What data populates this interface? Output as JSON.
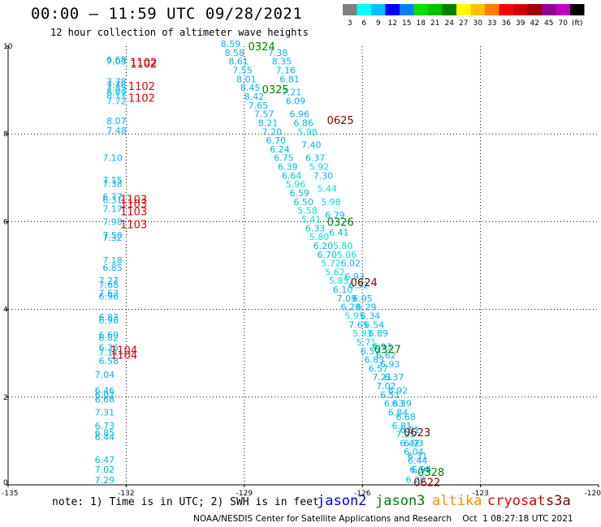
{
  "header": {
    "title": "00:00 – 11:59 UTC 09/28/2021",
    "subtitle": "12 hour collection of altimeter wave heights"
  },
  "legend": {
    "colors": [
      "#808080",
      "#00ffff",
      "#00c0ff",
      "#0000ff",
      "#0080ff",
      "#00e000",
      "#00c000",
      "#008000",
      "#ffff00",
      "#ffc000",
      "#ff8000",
      "#ff0000",
      "#d00000",
      "#a00000",
      "#900090",
      "#c000c0",
      "#000000"
    ],
    "labels": [
      "3",
      "6",
      "9",
      "12",
      "15",
      "18",
      "21",
      "24",
      "27",
      "30",
      "33",
      "36",
      "39",
      "42",
      "45",
      "70",
      "(ft)"
    ]
  },
  "chart_data": {
    "type": "scatter",
    "xlim": [
      -135,
      -120
    ],
    "ylim": [
      0,
      10
    ],
    "xticks": [
      "-135",
      "-132",
      "-129",
      "-126",
      "-123",
      "-120"
    ],
    "yticks": [
      "0",
      "2",
      "4",
      "6",
      "8",
      "10"
    ],
    "grid": true,
    "track_west": [
      {
        "x": -132.5,
        "y": 9.62,
        "label": "6.68"
      },
      {
        "x": -132.5,
        "y": 9.58,
        "label": "7.03"
      },
      {
        "x": -132.5,
        "y": 9.12,
        "label": "7.78"
      },
      {
        "x": -132.5,
        "y": 9.05,
        "label": "7.78"
      },
      {
        "x": -132.5,
        "y": 8.98,
        "label": "7.85"
      },
      {
        "x": -132.5,
        "y": 8.88,
        "label": "8.09"
      },
      {
        "x": -132.5,
        "y": 8.81,
        "label": "8.11"
      },
      {
        "x": -132.5,
        "y": 8.68,
        "label": "7.72"
      },
      {
        "x": -132.5,
        "y": 8.23,
        "label": "8.07"
      },
      {
        "x": -132.5,
        "y": 8.0,
        "label": "7.48"
      },
      {
        "x": -132.6,
        "y": 7.38,
        "label": "7.10"
      },
      {
        "x": -132.6,
        "y": 6.88,
        "label": "7.15"
      },
      {
        "x": -132.6,
        "y": 6.79,
        "label": "7.38"
      },
      {
        "x": -132.6,
        "y": 6.5,
        "label": "6.77"
      },
      {
        "x": -132.6,
        "y": 6.42,
        "label": "6.31"
      },
      {
        "x": -132.6,
        "y": 6.22,
        "label": "7.17"
      },
      {
        "x": -132.6,
        "y": 5.92,
        "label": "7.98"
      },
      {
        "x": -132.6,
        "y": 5.62,
        "label": "7.50"
      },
      {
        "x": -132.6,
        "y": 5.56,
        "label": "7.32"
      },
      {
        "x": -132.6,
        "y": 5.05,
        "label": "7.18"
      },
      {
        "x": -132.6,
        "y": 4.88,
        "label": "6.85"
      },
      {
        "x": -132.7,
        "y": 4.58,
        "label": "7.27"
      },
      {
        "x": -132.7,
        "y": 4.49,
        "label": "7.68"
      },
      {
        "x": -132.7,
        "y": 4.3,
        "label": "7.63"
      },
      {
        "x": -132.7,
        "y": 4.22,
        "label": "6.96"
      },
      {
        "x": -132.7,
        "y": 3.75,
        "label": "6.83"
      },
      {
        "x": -132.7,
        "y": 3.68,
        "label": "6.98"
      },
      {
        "x": -132.7,
        "y": 3.35,
        "label": "6.60"
      },
      {
        "x": -132.7,
        "y": 3.28,
        "label": "6.82"
      },
      {
        "x": -132.7,
        "y": 3.06,
        "label": "6.36"
      },
      {
        "x": -132.7,
        "y": 2.95,
        "label": "7.11"
      },
      {
        "x": -132.7,
        "y": 2.75,
        "label": "6.58"
      },
      {
        "x": -132.8,
        "y": 2.44,
        "label": "7.04"
      },
      {
        "x": -132.8,
        "y": 2.08,
        "label": "6.46"
      },
      {
        "x": -132.8,
        "y": 1.98,
        "label": "6.07"
      },
      {
        "x": -132.8,
        "y": 1.88,
        "label": "6.68"
      },
      {
        "x": -132.8,
        "y": 1.58,
        "label": "7.31"
      },
      {
        "x": -132.8,
        "y": 1.28,
        "label": "6.73"
      },
      {
        "x": -132.8,
        "y": 1.12,
        "label": "6.85"
      },
      {
        "x": -132.8,
        "y": 1.02,
        "label": "6.44"
      },
      {
        "x": -132.8,
        "y": 0.5,
        "label": "6.47"
      },
      {
        "x": -132.8,
        "y": 0.28,
        "label": "7.02"
      },
      {
        "x": -132.8,
        "y": 0.04,
        "label": "7.29"
      }
    ],
    "track_east": [
      {
        "x": -129.6,
        "y": 9.98,
        "label": "8.59"
      },
      {
        "x": -129.5,
        "y": 9.78,
        "label": "8.58"
      },
      {
        "x": -129.4,
        "y": 9.58,
        "label": "8.61"
      },
      {
        "x": -129.3,
        "y": 9.38,
        "label": "7.55"
      },
      {
        "x": -129.2,
        "y": 9.18,
        "label": "8.01"
      },
      {
        "x": -129.1,
        "y": 8.98,
        "label": "8.45"
      },
      {
        "x": -129.0,
        "y": 8.78,
        "label": "8.42"
      },
      {
        "x": -128.9,
        "y": 8.58,
        "label": "7.65"
      },
      {
        "x": -128.75,
        "y": 8.38,
        "label": "7.57"
      },
      {
        "x": -128.65,
        "y": 8.18,
        "label": "8.21"
      },
      {
        "x": -128.55,
        "y": 7.98,
        "label": "7.20"
      },
      {
        "x": -128.45,
        "y": 7.78,
        "label": "6.70"
      },
      {
        "x": -128.35,
        "y": 7.58,
        "label": "6.24"
      },
      {
        "x": -128.25,
        "y": 7.38,
        "label": "6.75"
      },
      {
        "x": -128.15,
        "y": 7.18,
        "label": "6.39"
      },
      {
        "x": -128.05,
        "y": 6.98,
        "label": "6.64"
      },
      {
        "x": -127.95,
        "y": 6.78,
        "label": "5.96"
      },
      {
        "x": -127.85,
        "y": 6.58,
        "label": "6.59"
      },
      {
        "x": -127.75,
        "y": 6.38,
        "label": "6.50"
      },
      {
        "x": -127.65,
        "y": 6.18,
        "label": "5.58"
      },
      {
        "x": -127.55,
        "y": 5.98,
        "label": "5.41"
      },
      {
        "x": -127.45,
        "y": 5.78,
        "label": "6.33"
      },
      {
        "x": -127.35,
        "y": 5.58,
        "label": "5.80"
      },
      {
        "x": -127.25,
        "y": 5.38,
        "label": "6.20"
      },
      {
        "x": -127.15,
        "y": 5.18,
        "label": "6.70"
      },
      {
        "x": -127.05,
        "y": 4.98,
        "label": "5.72"
      },
      {
        "x": -126.95,
        "y": 4.78,
        "label": "5.62"
      },
      {
        "x": -126.85,
        "y": 4.58,
        "label": "5.85"
      },
      {
        "x": -126.75,
        "y": 4.38,
        "label": "6.10"
      },
      {
        "x": -126.65,
        "y": 4.18,
        "label": "7.09"
      },
      {
        "x": -126.55,
        "y": 3.98,
        "label": "6.28"
      },
      {
        "x": -126.45,
        "y": 3.78,
        "label": "5.95"
      },
      {
        "x": -126.35,
        "y": 3.58,
        "label": "7.65"
      },
      {
        "x": -126.25,
        "y": 3.38,
        "label": "5.93"
      },
      {
        "x": -126.15,
        "y": 3.18,
        "label": "5.71"
      },
      {
        "x": -126.05,
        "y": 2.98,
        "label": "6.57"
      },
      {
        "x": -125.95,
        "y": 2.78,
        "label": "6.83"
      },
      {
        "x": -125.85,
        "y": 2.58,
        "label": "6.57"
      },
      {
        "x": -125.75,
        "y": 2.38,
        "label": "7.21"
      },
      {
        "x": -125.65,
        "y": 2.18,
        "label": "7.02"
      },
      {
        "x": -125.55,
        "y": 1.98,
        "label": "6.51"
      },
      {
        "x": -125.45,
        "y": 1.78,
        "label": "6.83"
      },
      {
        "x": -125.35,
        "y": 1.58,
        "label": "6.84"
      },
      {
        "x": -125.25,
        "y": 1.28,
        "label": "6.81"
      },
      {
        "x": -125.15,
        "y": 1.08,
        "label": "7.25"
      },
      {
        "x": -125.05,
        "y": 0.88,
        "label": "6.42"
      },
      {
        "x": -124.95,
        "y": 0.68,
        "label": "6.04"
      },
      {
        "x": -124.85,
        "y": 0.48,
        "label": "6.44"
      },
      {
        "x": -124.8,
        "y": 0.28,
        "label": "6.14"
      },
      {
        "x": -124.9,
        "y": 0.05,
        "label": "6.26"
      },
      {
        "x": -128.4,
        "y": 9.78,
        "label": "7.38"
      },
      {
        "x": -128.3,
        "y": 9.58,
        "label": "8.35"
      },
      {
        "x": -128.2,
        "y": 9.38,
        "label": "7.16"
      },
      {
        "x": -128.1,
        "y": 9.18,
        "label": "6.81"
      },
      {
        "x": -128.05,
        "y": 8.88,
        "label": "7.21"
      },
      {
        "x": -127.95,
        "y": 8.68,
        "label": "6.09"
      },
      {
        "x": -127.85,
        "y": 8.38,
        "label": "6.96"
      },
      {
        "x": -127.75,
        "y": 8.18,
        "label": "6.86"
      },
      {
        "x": -127.65,
        "y": 7.98,
        "label": "5.98"
      },
      {
        "x": -127.55,
        "y": 7.68,
        "label": "7.40"
      },
      {
        "x": -127.45,
        "y": 7.38,
        "label": "6.37"
      },
      {
        "x": -127.35,
        "y": 7.18,
        "label": "5.92"
      },
      {
        "x": -127.25,
        "y": 6.98,
        "label": "7.30"
      },
      {
        "x": -127.15,
        "y": 6.68,
        "label": "5.44"
      },
      {
        "x": -127.05,
        "y": 6.38,
        "label": "5.98"
      },
      {
        "x": -126.95,
        "y": 6.08,
        "label": "6.79"
      },
      {
        "x": -126.85,
        "y": 5.68,
        "label": "6.41"
      },
      {
        "x": -126.75,
        "y": 5.38,
        "label": "5.80"
      },
      {
        "x": -126.65,
        "y": 5.18,
        "label": "5.06"
      },
      {
        "x": -126.55,
        "y": 4.98,
        "label": "6.02"
      },
      {
        "x": -126.45,
        "y": 4.68,
        "label": "6.93"
      },
      {
        "x": -126.35,
        "y": 4.48,
        "label": "6.32"
      },
      {
        "x": -126.25,
        "y": 4.18,
        "label": "6.95"
      },
      {
        "x": -126.15,
        "y": 3.98,
        "label": "6.29"
      },
      {
        "x": -126.05,
        "y": 3.78,
        "label": "6.34"
      },
      {
        "x": -125.95,
        "y": 3.58,
        "label": "6.54"
      },
      {
        "x": -125.85,
        "y": 3.38,
        "label": "6.89"
      },
      {
        "x": -125.75,
        "y": 3.08,
        "label": "6.93"
      },
      {
        "x": -125.65,
        "y": 2.88,
        "label": "6.62"
      },
      {
        "x": -125.55,
        "y": 2.68,
        "label": "6.93"
      },
      {
        "x": -125.45,
        "y": 2.38,
        "label": "6.37"
      },
      {
        "x": -125.35,
        "y": 2.08,
        "label": "6.92"
      },
      {
        "x": -125.25,
        "y": 1.78,
        "label": "6.39"
      },
      {
        "x": -125.15,
        "y": 1.48,
        "label": "6.68"
      },
      {
        "x": -125.05,
        "y": 1.18,
        "label": "6.81"
      },
      {
        "x": -124.95,
        "y": 0.88,
        "label": "6.93"
      },
      {
        "x": -124.85,
        "y": 0.58,
        "label": "6.31"
      },
      {
        "x": -124.75,
        "y": 0.28,
        "label": "6.94"
      }
    ],
    "time_labels": [
      {
        "x": -131.9,
        "y": 9.62,
        "label": "1102",
        "color": "#e00000"
      },
      {
        "x": -131.9,
        "y": 9.58,
        "label": "1102",
        "color": "#e00000"
      },
      {
        "x": -131.95,
        "y": 9.08,
        "label": "1102",
        "color": "#e00000"
      },
      {
        "x": -131.95,
        "y": 8.81,
        "label": "1102",
        "color": "#e00000"
      },
      {
        "x": -132.15,
        "y": 6.5,
        "label": "1103",
        "color": "#e00000"
      },
      {
        "x": -132.15,
        "y": 6.4,
        "label": "1103",
        "color": "#e00000"
      },
      {
        "x": -132.15,
        "y": 6.22,
        "label": "1103",
        "color": "#e00000"
      },
      {
        "x": -132.15,
        "y": 5.92,
        "label": "1103",
        "color": "#e00000"
      },
      {
        "x": -132.4,
        "y": 3.06,
        "label": "1104",
        "color": "#e00000"
      },
      {
        "x": -132.4,
        "y": 2.95,
        "label": "1104",
        "color": "#e00000"
      },
      {
        "x": -128.9,
        "y": 9.98,
        "label": "0324",
        "color": "#008000"
      },
      {
        "x": -128.55,
        "y": 9.0,
        "label": "0325",
        "color": "#008000"
      },
      {
        "x": -126.9,
        "y": 8.3,
        "label": "0625",
        "color": "#800000"
      },
      {
        "x": -126.9,
        "y": 5.98,
        "label": "0326",
        "color": "#008000"
      },
      {
        "x": -126.3,
        "y": 4.6,
        "label": "0624",
        "color": "#800000"
      },
      {
        "x": -125.7,
        "y": 3.08,
        "label": "0327",
        "color": "#008000"
      },
      {
        "x": -124.95,
        "y": 1.18,
        "label": "0623",
        "color": "#800000"
      },
      {
        "x": -124.6,
        "y": 0.28,
        "label": "0328",
        "color": "#008000"
      },
      {
        "x": -124.7,
        "y": 0.05,
        "label": "0622",
        "color": "#800000"
      }
    ]
  },
  "note": "note: 1) Time is in UTC; 2) SWH is in feet",
  "satellites": [
    {
      "name": "jason2",
      "color": "#0000e0"
    },
    {
      "name": "jason3",
      "color": "#008000"
    },
    {
      "name": "altika",
      "color": "#ff8c00"
    },
    {
      "name": "cryosat",
      "color": "#e00000"
    },
    {
      "name": "s3a",
      "color": "#800000"
    }
  ],
  "footer": "NOAA/NESDIS Center for Satellite Applications and Research    Oct  1 08:27:18 UTC 2021"
}
